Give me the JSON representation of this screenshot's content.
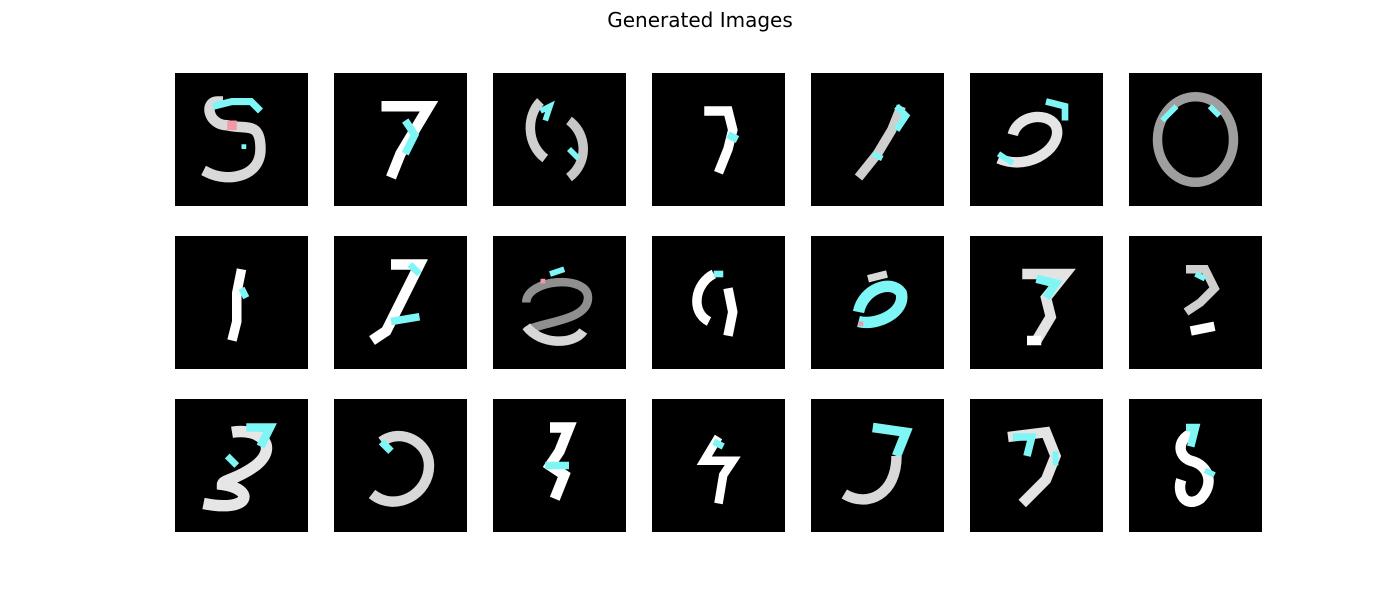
{
  "figure": {
    "title": "Generated Images"
  },
  "palette": {
    "background": "#000000",
    "stroke_white": "#ffffff",
    "stroke_gray": "#b0b0b0",
    "stroke_cyan": "#7ff6f6",
    "stroke_pink": "#f29aa8"
  },
  "rows": 3,
  "cols": 7
}
